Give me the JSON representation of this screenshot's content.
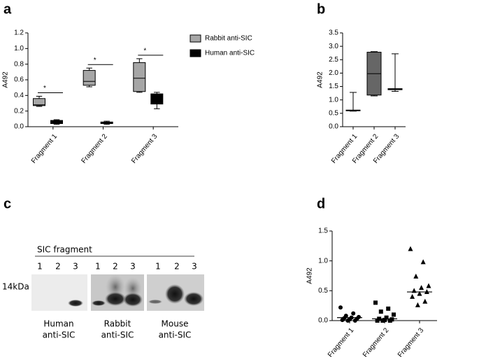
{
  "chart_data": [
    {
      "type": "box",
      "panel_label": "a",
      "ylabel": "A492",
      "categories": [
        "Fragment 1",
        "Fragment 2",
        "Fragment 3"
      ],
      "series": [
        {
          "name": "Rabbit anti-SIC",
          "color": "#a6a6a6",
          "values": [
            {
              "min": 0.26,
              "q1": 0.27,
              "median": 0.28,
              "q3": 0.36,
              "max": 0.39
            },
            {
              "min": 0.51,
              "q1": 0.53,
              "median": 0.58,
              "q3": 0.72,
              "max": 0.75
            },
            {
              "min": 0.44,
              "q1": 0.45,
              "median": 0.62,
              "q3": 0.82,
              "max": 0.87
            }
          ]
        },
        {
          "name": "Human anti-SIC",
          "color": "#000000",
          "values": [
            {
              "min": 0.03,
              "q1": 0.04,
              "median": 0.06,
              "q3": 0.08,
              "max": 0.09
            },
            {
              "min": 0.03,
              "q1": 0.04,
              "median": 0.05,
              "q3": 0.06,
              "max": 0.07
            },
            {
              "min": 0.23,
              "q1": 0.29,
              "median": 0.34,
              "q3": 0.42,
              "max": 0.44
            }
          ]
        }
      ],
      "significance": [
        "*",
        "*",
        "*"
      ],
      "ylim": [
        0,
        1.2
      ],
      "yticks": [
        {
          "value": 0,
          "label": "0.0"
        },
        0.2,
        0.4,
        0.6,
        0.8,
        {
          "value": 1,
          "label": "1.0"
        },
        1.2
      ],
      "legend": "upper right"
    },
    {
      "type": "box",
      "panel_label": "b",
      "ylabel": "A492",
      "categories": [
        "Fragment 1",
        "Fragment 2",
        "Fragment 3"
      ],
      "colors": [
        "#ffffff",
        "#666666",
        "#ffffff"
      ],
      "values": [
        {
          "min": 0.58,
          "q1": 0.6,
          "median": 0.6,
          "q3": 0.62,
          "max": 1.28
        },
        {
          "min": 1.15,
          "q1": 1.18,
          "median": 1.98,
          "q3": 2.78,
          "max": 2.8
        },
        {
          "min": 1.32,
          "q1": 1.38,
          "median": 1.4,
          "q3": 1.42,
          "max": 2.72
        }
      ],
      "ylim": [
        0,
        3.5
      ],
      "yticks": [
        {
          "value": 0,
          "label": "0.0"
        },
        0.5,
        {
          "value": 1,
          "label": "1.0"
        },
        1.5,
        {
          "value": 2,
          "label": "2.0"
        },
        2.5,
        {
          "value": 3,
          "label": "3.0"
        },
        3.5
      ]
    },
    {
      "type": "dot",
      "panel_label": "d",
      "ylabel": "A492",
      "categories": [
        "Fragment 1",
        "Fragment 2",
        "Fragment 3"
      ],
      "markers": [
        "circle",
        "square",
        "triangle"
      ],
      "color": "#000000",
      "values": [
        [
          0.22,
          0.12,
          0.08,
          0.06,
          0.05,
          0.04,
          0.03,
          0.02,
          0.01,
          0.0,
          0.0
        ],
        [
          0.3,
          0.2,
          0.15,
          0.1,
          0.05,
          0.03,
          0.02,
          0.01,
          0.0,
          0.0,
          0.0
        ],
        [
          1.2,
          0.98,
          0.74,
          0.58,
          0.55,
          0.5,
          0.48,
          0.45,
          0.4,
          0.32,
          0.26
        ]
      ],
      "medians": [
        0.05,
        0.03,
        0.48
      ],
      "ylim": [
        0,
        1.5
      ],
      "yticks": [
        {
          "value": 0,
          "label": "0.0"
        },
        0.5,
        {
          "value": 1,
          "label": "1.0"
        },
        1.5
      ]
    }
  ],
  "blot": {
    "panel_label": "c",
    "title": "SIC fragment",
    "marker": "14kDa",
    "lanes": [
      "1",
      "2",
      "3",
      "1",
      "2",
      "3",
      "1",
      "2",
      "3"
    ],
    "captions": [
      [
        "Human",
        "anti-SIC"
      ],
      [
        "Rabbit",
        "anti-SIC"
      ],
      [
        "Mouse",
        "anti-SIC"
      ]
    ]
  }
}
